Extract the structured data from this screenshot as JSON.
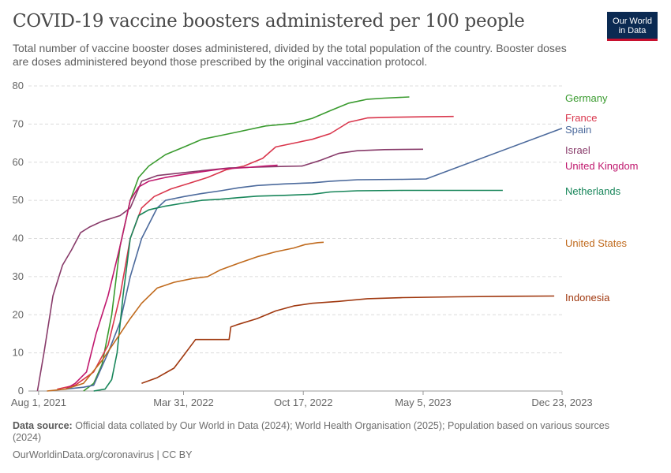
{
  "header": {
    "title": "COVID-19 vaccine boosters administered per 100 people",
    "subtitle": "Total number of vaccine booster doses administered, divided by the total population of the country. Booster doses are doses administered beyond those prescribed by the original vaccination protocol.",
    "logo_line1": "Our World",
    "logo_line2": "in Data"
  },
  "footer": {
    "source_label": "Data source:",
    "source_text": "Official data collated by Our World in Data (2024); World Health Organisation (2025); Population based on various sources (2024)",
    "url": "OurWorldinData.org/coronavirus | CC BY"
  },
  "chart_data": {
    "type": "line",
    "title": "COVID-19 vaccine boosters administered per 100 people",
    "xlabel": "",
    "ylabel": "",
    "x_domain": [
      "2021-07-15",
      "2023-12-23"
    ],
    "ylim": [
      0,
      80
    ],
    "y_ticks": [
      0,
      10,
      20,
      30,
      40,
      50,
      60,
      70,
      80
    ],
    "x_ticks": [
      {
        "date": "2021-08-01",
        "label": "Aug 1, 2021"
      },
      {
        "date": "2022-03-31",
        "label": "Mar 31, 2022"
      },
      {
        "date": "2022-10-17",
        "label": "Oct 17, 2022"
      },
      {
        "date": "2023-05-05",
        "label": "May 5, 2023"
      },
      {
        "date": "2023-12-23",
        "label": "Dec 23, 2023"
      }
    ],
    "grid": "horizontal dashed",
    "legend": "right, labels at line ends",
    "series": [
      {
        "name": "Germany",
        "color": "#3a9b2f",
        "points": [
          [
            "2021-10-15",
            0
          ],
          [
            "2021-11-01",
            2
          ],
          [
            "2021-11-15",
            7
          ],
          [
            "2021-12-01",
            20
          ],
          [
            "2021-12-15",
            38
          ],
          [
            "2022-01-01",
            50
          ],
          [
            "2022-01-15",
            56
          ],
          [
            "2022-02-01",
            59
          ],
          [
            "2022-03-01",
            62
          ],
          [
            "2022-04-01",
            64
          ],
          [
            "2022-05-01",
            66
          ],
          [
            "2022-06-01",
            67
          ],
          [
            "2022-07-01",
            68
          ],
          [
            "2022-08-15",
            69.5
          ],
          [
            "2022-10-01",
            70.2
          ],
          [
            "2022-11-01",
            71.5
          ],
          [
            "2022-12-01",
            73.5
          ],
          [
            "2023-01-01",
            75.5
          ],
          [
            "2023-02-01",
            76.5
          ],
          [
            "2023-03-01",
            76.8
          ],
          [
            "2023-04-12",
            77.1
          ]
        ]
      },
      {
        "name": "France",
        "color": "#d9364c",
        "points": [
          [
            "2021-09-01",
            0.5
          ],
          [
            "2021-10-01",
            1.5
          ],
          [
            "2021-11-01",
            5
          ],
          [
            "2021-11-25",
            12
          ],
          [
            "2021-12-15",
            25
          ],
          [
            "2022-01-01",
            40
          ],
          [
            "2022-01-20",
            48
          ],
          [
            "2022-02-10",
            51
          ],
          [
            "2022-03-10",
            53
          ],
          [
            "2022-04-10",
            54.5
          ],
          [
            "2022-05-10",
            56
          ],
          [
            "2022-06-10",
            58
          ],
          [
            "2022-07-10",
            59
          ],
          [
            "2022-08-10",
            61
          ],
          [
            "2022-09-01",
            64
          ],
          [
            "2022-10-01",
            65
          ],
          [
            "2022-11-01",
            66
          ],
          [
            "2022-12-01",
            67.5
          ],
          [
            "2023-01-01",
            70.5
          ],
          [
            "2023-02-01",
            71.6
          ],
          [
            "2023-03-15",
            71.8
          ],
          [
            "2023-05-01",
            71.9
          ],
          [
            "2023-06-25",
            72
          ]
        ]
      },
      {
        "name": "Spain",
        "color": "#4c6a9c",
        "points": [
          [
            "2021-09-15",
            0.5
          ],
          [
            "2021-10-15",
            1
          ],
          [
            "2021-11-01",
            1.5
          ],
          [
            "2021-11-25",
            10
          ],
          [
            "2021-12-15",
            18
          ],
          [
            "2022-01-01",
            30
          ],
          [
            "2022-01-20",
            40
          ],
          [
            "2022-02-15",
            48
          ],
          [
            "2022-03-01",
            50
          ],
          [
            "2022-04-01",
            51
          ],
          [
            "2022-05-01",
            51.8
          ],
          [
            "2022-06-01",
            52.5
          ],
          [
            "2022-07-01",
            53.3
          ],
          [
            "2022-08-01",
            53.9
          ],
          [
            "2022-09-15",
            54.3
          ],
          [
            "2022-11-01",
            54.6
          ],
          [
            "2022-12-01",
            55
          ],
          [
            "2023-01-15",
            55.4
          ],
          [
            "2023-04-01",
            55.5
          ],
          [
            "2023-05-10",
            55.6
          ],
          [
            "2023-12-23",
            68.9
          ]
        ]
      },
      {
        "name": "Israel",
        "color": "#883b6a",
        "points": [
          [
            "2021-07-30",
            0
          ],
          [
            "2021-08-10",
            10
          ],
          [
            "2021-08-25",
            25
          ],
          [
            "2021-09-10",
            33
          ],
          [
            "2021-09-25",
            37
          ],
          [
            "2021-10-10",
            41.5
          ],
          [
            "2021-10-25",
            43
          ],
          [
            "2021-11-15",
            44.5
          ],
          [
            "2021-12-15",
            46
          ],
          [
            "2022-01-01",
            48
          ],
          [
            "2022-01-20",
            55
          ],
          [
            "2022-02-15",
            56.5
          ],
          [
            "2022-03-15",
            57
          ],
          [
            "2022-04-15",
            57.5
          ],
          [
            "2022-05-15",
            58
          ],
          [
            "2022-06-15",
            58.5
          ],
          [
            "2022-08-01",
            58.7
          ],
          [
            "2022-09-15",
            58.9
          ],
          [
            "2022-10-15",
            59
          ],
          [
            "2022-11-15",
            60.5
          ],
          [
            "2022-12-15",
            62.3
          ],
          [
            "2023-01-15",
            63
          ],
          [
            "2023-03-01",
            63.3
          ],
          [
            "2023-05-05",
            63.4
          ]
        ]
      },
      {
        "name": "United Kingdom",
        "color": "#c0186e",
        "points": [
          [
            "2021-09-15",
            0.5
          ],
          [
            "2021-10-01",
            2
          ],
          [
            "2021-10-20",
            5
          ],
          [
            "2021-11-05",
            15
          ],
          [
            "2021-11-25",
            25
          ],
          [
            "2021-12-15",
            38
          ],
          [
            "2022-01-01",
            50
          ],
          [
            "2022-01-15",
            53.5
          ],
          [
            "2022-02-01",
            55
          ],
          [
            "2022-03-01",
            56
          ],
          [
            "2022-04-01",
            56.8
          ],
          [
            "2022-05-01",
            57.5
          ],
          [
            "2022-06-01",
            58.2
          ],
          [
            "2022-07-15",
            58.6
          ],
          [
            "2022-08-15",
            59
          ],
          [
            "2022-09-04",
            59.2
          ]
        ]
      },
      {
        "name": "Netherlands",
        "color": "#18865a",
        "points": [
          [
            "2021-11-01",
            0
          ],
          [
            "2021-11-20",
            0.5
          ],
          [
            "2021-12-01",
            3
          ],
          [
            "2021-12-10",
            10
          ],
          [
            "2021-12-20",
            25
          ],
          [
            "2022-01-01",
            40
          ],
          [
            "2022-01-15",
            46
          ],
          [
            "2022-02-01",
            47.5
          ],
          [
            "2022-03-01",
            48.5
          ],
          [
            "2022-04-01",
            49.3
          ],
          [
            "2022-05-01",
            50
          ],
          [
            "2022-06-01",
            50.3
          ],
          [
            "2022-07-01",
            50.7
          ],
          [
            "2022-08-01",
            51.1
          ],
          [
            "2022-09-15",
            51.3
          ],
          [
            "2022-11-01",
            51.6
          ],
          [
            "2022-12-01",
            52.2
          ],
          [
            "2023-01-15",
            52.5
          ],
          [
            "2023-04-01",
            52.6
          ],
          [
            "2023-09-15",
            52.6
          ]
        ]
      },
      {
        "name": "United States",
        "color": "#c06a1d",
        "points": [
          [
            "2021-08-15",
            0
          ],
          [
            "2021-09-15",
            0.5
          ],
          [
            "2021-10-15",
            2
          ],
          [
            "2021-11-15",
            8
          ],
          [
            "2021-12-15",
            15
          ],
          [
            "2022-01-01",
            19
          ],
          [
            "2022-01-20",
            23
          ],
          [
            "2022-02-15",
            27
          ],
          [
            "2022-03-15",
            28.5
          ],
          [
            "2022-04-15",
            29.5
          ],
          [
            "2022-05-10",
            30
          ],
          [
            "2022-06-01",
            31.8
          ],
          [
            "2022-07-01",
            33.5
          ],
          [
            "2022-08-01",
            35.2
          ],
          [
            "2022-09-01",
            36.5
          ],
          [
            "2022-10-01",
            37.5
          ],
          [
            "2022-10-20",
            38.4
          ],
          [
            "2022-11-10",
            38.9
          ],
          [
            "2022-11-20",
            39
          ]
        ]
      },
      {
        "name": "Indonesia",
        "color": "#a0380f",
        "points": [
          [
            "2022-01-20",
            2
          ],
          [
            "2022-02-15",
            3.5
          ],
          [
            "2022-03-15",
            6
          ],
          [
            "2022-04-01",
            9.5
          ],
          [
            "2022-04-20",
            13.5
          ],
          [
            "2022-05-15",
            13.5
          ],
          [
            "2022-06-15",
            13.5
          ],
          [
            "2022-06-18",
            16.8
          ],
          [
            "2022-07-01",
            17.5
          ],
          [
            "2022-08-01",
            19
          ],
          [
            "2022-09-01",
            21
          ],
          [
            "2022-10-01",
            22.3
          ],
          [
            "2022-11-01",
            23
          ],
          [
            "2022-12-15",
            23.5
          ],
          [
            "2023-02-01",
            24.2
          ],
          [
            "2023-04-01",
            24.5
          ],
          [
            "2023-07-01",
            24.7
          ],
          [
            "2023-10-01",
            24.85
          ],
          [
            "2023-12-10",
            24.9
          ]
        ]
      }
    ]
  }
}
